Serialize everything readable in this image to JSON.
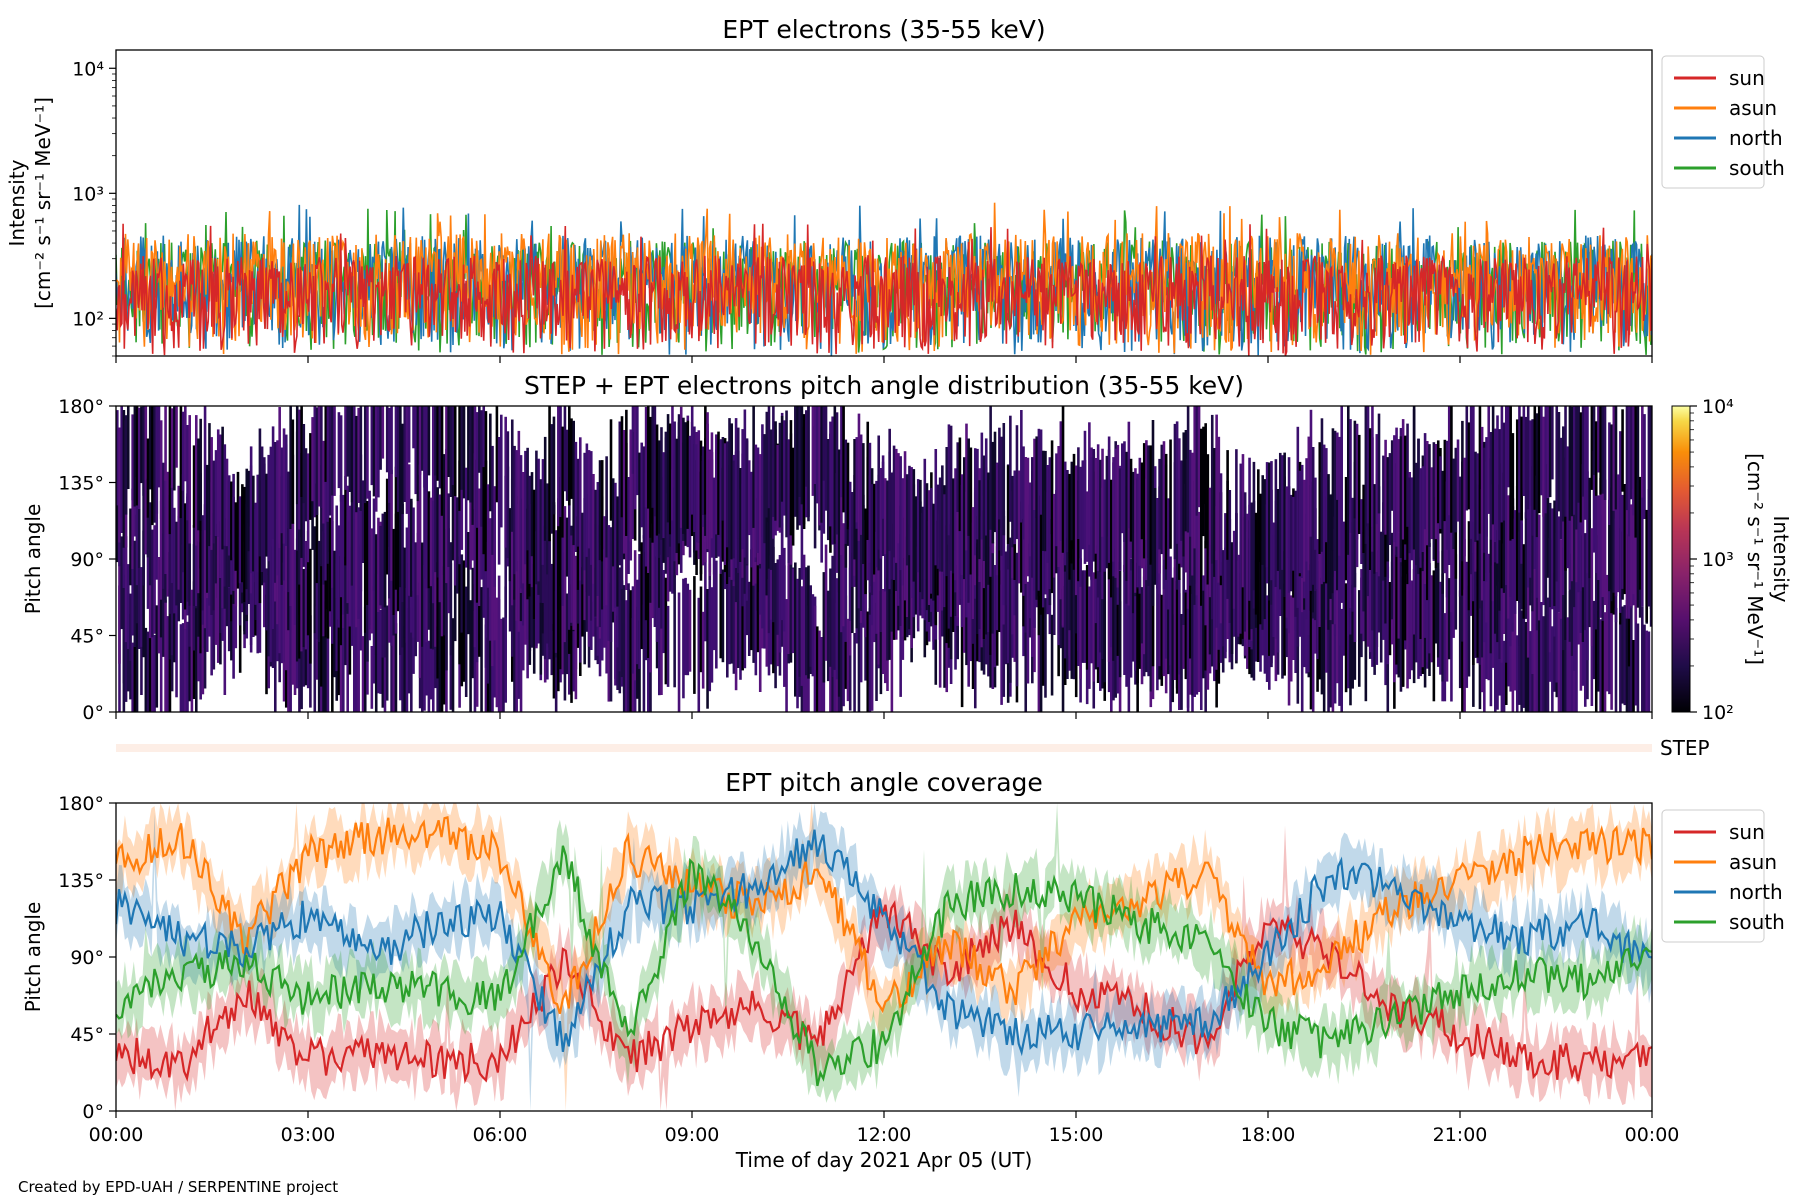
{
  "chart_data": [
    {
      "type": "line",
      "title": "EPT electrons (35-55 keV)",
      "ylabel_lines": [
        "Intensity",
        "[cm⁻² s⁻¹ sr⁻¹ MeV⁻¹]"
      ],
      "yscale": "log",
      "ylim": [
        50,
        14000
      ],
      "yticks": [
        {
          "value": 100,
          "label": "10²"
        },
        {
          "value": 1000,
          "label": "10³"
        },
        {
          "value": 10000,
          "label": "10⁴"
        }
      ],
      "x_range_hours": [
        0,
        24
      ],
      "typical_intensity_range": [
        50,
        720
      ],
      "series": [
        {
          "name": "sun",
          "color": "#d62728",
          "typical_upper": 320
        },
        {
          "name": "asun",
          "color": "#ff7f0e",
          "typical_upper": 480
        },
        {
          "name": "north",
          "color": "#1f77b4",
          "typical_upper": 460
        },
        {
          "name": "south",
          "color": "#2ca02c",
          "typical_upper": 420
        }
      ],
      "legend_position": "upper-right-outside"
    },
    {
      "type": "heatmap",
      "title": "STEP + EPT electrons pitch angle distribution (35-55 keV)",
      "ylabel": "Pitch angle",
      "ylim": [
        0,
        180
      ],
      "yticks": [
        {
          "value": 0,
          "label": "0°"
        },
        {
          "value": 45,
          "label": "45°"
        },
        {
          "value": 90,
          "label": "90°"
        },
        {
          "value": 135,
          "label": "135°"
        },
        {
          "value": 180,
          "label": "180°"
        }
      ],
      "colorbar": {
        "label_lines": [
          "Intensity",
          "[cm⁻² s⁻¹ sr⁻¹ MeV⁻¹]"
        ],
        "scale": "log",
        "range": [
          100,
          10000
        ],
        "ticks": [
          {
            "value": 100,
            "label": "10²"
          },
          {
            "value": 1000,
            "label": "10³"
          },
          {
            "value": 10000,
            "label": "10⁴"
          }
        ],
        "colormap": "inferno"
      }
    },
    {
      "type": "strip",
      "label": "STEP"
    },
    {
      "type": "line",
      "title": "EPT pitch angle coverage",
      "ylabel": "Pitch angle",
      "ylim": [
        0,
        180
      ],
      "yticks": [
        {
          "value": 0,
          "label": "0°"
        },
        {
          "value": 45,
          "label": "45°"
        },
        {
          "value": 90,
          "label": "90°"
        },
        {
          "value": 135,
          "label": "135°"
        },
        {
          "value": 180,
          "label": "180°"
        }
      ],
      "xlabel": "Time of day 2021 Apr 05 (UT)",
      "xticks": [
        {
          "value": 0,
          "label": "00:00"
        },
        {
          "value": 3,
          "label": "03:00"
        },
        {
          "value": 6,
          "label": "06:00"
        },
        {
          "value": 9,
          "label": "09:00"
        },
        {
          "value": 12,
          "label": "12:00"
        },
        {
          "value": 15,
          "label": "15:00"
        },
        {
          "value": 18,
          "label": "18:00"
        },
        {
          "value": 21,
          "label": "21:00"
        },
        {
          "value": 24,
          "label": "00:00"
        }
      ],
      "series": [
        {
          "name": "sun",
          "color": "#d62728",
          "x": [
            0,
            1,
            2,
            3,
            4,
            5,
            6,
            7,
            8,
            9,
            10,
            11,
            12,
            13,
            14,
            15,
            16,
            17,
            18,
            19,
            20,
            21,
            22,
            23,
            24
          ],
          "y": [
            35,
            25,
            70,
            30,
            35,
            30,
            28,
            90,
            30,
            50,
            60,
            40,
            120,
            80,
            110,
            70,
            60,
            40,
            110,
            90,
            60,
            45,
            30,
            28,
            28
          ]
        },
        {
          "name": "asun",
          "color": "#ff7f0e",
          "x": [
            0,
            1,
            2,
            3,
            4,
            5,
            6,
            7,
            8,
            9,
            10,
            11,
            12,
            13,
            14,
            15,
            16,
            17,
            18,
            19,
            20,
            21,
            22,
            23,
            24
          ],
          "y": [
            145,
            160,
            100,
            150,
            160,
            165,
            150,
            60,
            150,
            130,
            120,
            140,
            60,
            100,
            70,
            110,
            120,
            140,
            70,
            90,
            120,
            135,
            150,
            155,
            155
          ]
        },
        {
          "name": "north",
          "color": "#1f77b4",
          "x": [
            0,
            1,
            2,
            3,
            4,
            5,
            6,
            7,
            8,
            9,
            10,
            11,
            12,
            13,
            14,
            15,
            16,
            17,
            18,
            19,
            20,
            21,
            22,
            23,
            24
          ],
          "y": [
            120,
            100,
            95,
            115,
            90,
            110,
            115,
            40,
            120,
            120,
            130,
            160,
            110,
            60,
            45,
            45,
            50,
            50,
            90,
            140,
            130,
            110,
            100,
            110,
            85
          ]
        },
        {
          "name": "south",
          "color": "#2ca02c",
          "x": [
            0,
            1,
            2,
            3,
            4,
            5,
            6,
            7,
            8,
            9,
            10,
            11,
            12,
            13,
            14,
            15,
            16,
            17,
            18,
            19,
            20,
            21,
            22,
            23,
            24
          ],
          "y": [
            60,
            80,
            85,
            65,
            75,
            70,
            65,
            150,
            40,
            140,
            100,
            20,
            40,
            120,
            130,
            125,
            110,
            100,
            50,
            40,
            55,
            70,
            80,
            75,
            95
          ]
        }
      ],
      "legend_position": "upper-right-outside"
    }
  ],
  "credit": "Created by EPD-UAH / SERPENTINE project"
}
